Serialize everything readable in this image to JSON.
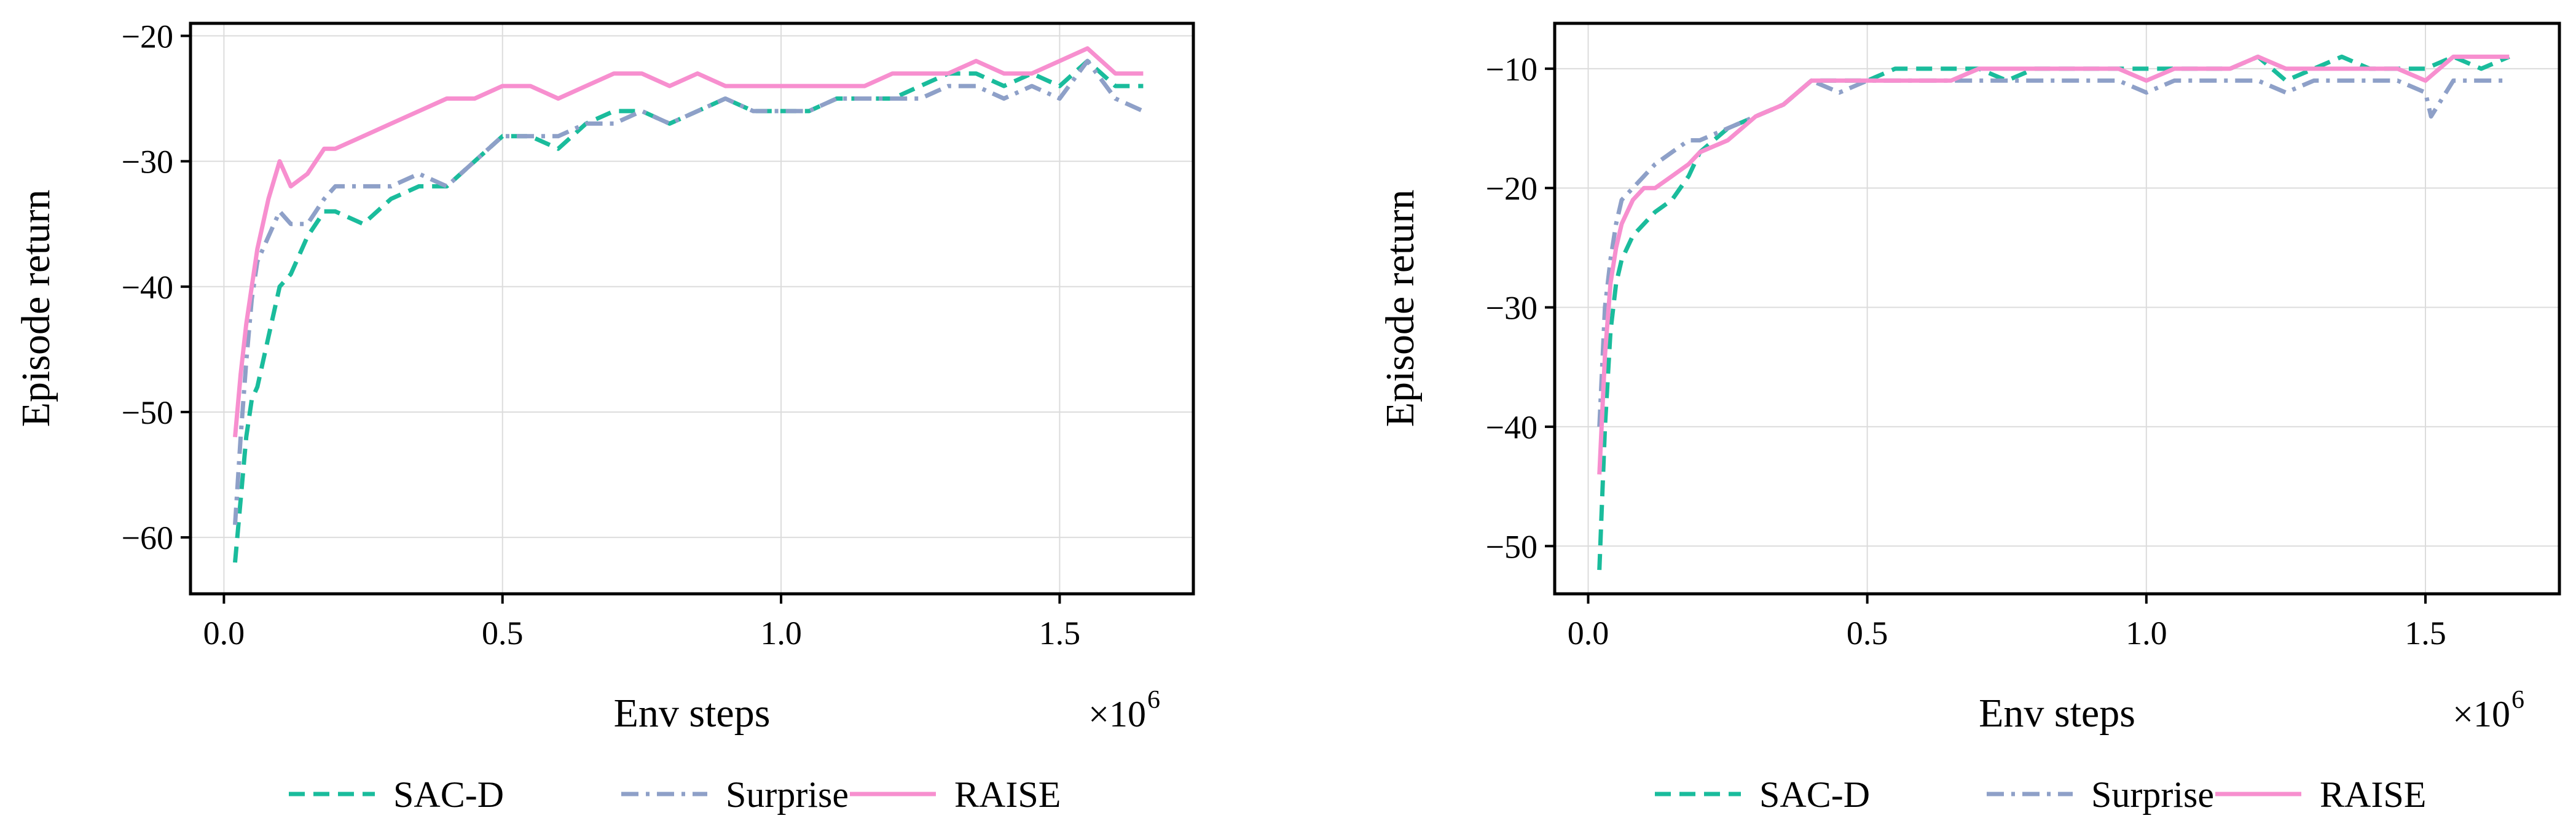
{
  "chart_data": [
    {
      "type": "line",
      "xlabel": "Env steps",
      "ylabel": "Episode return",
      "x_multiplier_label": "×10",
      "x_multiplier_exp": "6",
      "xlim": [
        -0.06,
        1.74
      ],
      "ylim": [
        -64.5,
        -19
      ],
      "xticks": [
        0.0,
        0.5,
        1.0,
        1.5
      ],
      "xtick_labels": [
        "0.0",
        "0.5",
        "1.0",
        "1.5"
      ],
      "yticks": [
        -60,
        -50,
        -40,
        -30,
        -20
      ],
      "ytick_labels": [
        "−60",
        "−50",
        "−40",
        "−30",
        "−20"
      ],
      "grid": true,
      "legend_position": "bottom",
      "series": [
        {
          "name": "SAC-D",
          "color": "#1abc9c",
          "dash": "dashed",
          "x": [
            0.02,
            0.03,
            0.04,
            0.05,
            0.06,
            0.08,
            0.1,
            0.12,
            0.15,
            0.18,
            0.2,
            0.25,
            0.3,
            0.35,
            0.4,
            0.45,
            0.5,
            0.55,
            0.6,
            0.65,
            0.7,
            0.75,
            0.8,
            0.85,
            0.9,
            0.95,
            1.0,
            1.05,
            1.1,
            1.15,
            1.2,
            1.25,
            1.3,
            1.35,
            1.4,
            1.45,
            1.5,
            1.55,
            1.6,
            1.65
          ],
          "y": [
            -62,
            -57,
            -52,
            -49,
            -48,
            -44,
            -40,
            -39,
            -36,
            -34,
            -34,
            -35,
            -33,
            -32,
            -32,
            -30,
            -28,
            -28,
            -29,
            -27,
            -26,
            -26,
            -27,
            -26,
            -25,
            -26,
            -26,
            -26,
            -25,
            -25,
            -25,
            -24,
            -23,
            -23,
            -24,
            -23,
            -24,
            -22,
            -24,
            -24
          ]
        },
        {
          "name": "Surprise",
          "color": "#8ea0c8",
          "dash": "dashdot",
          "x": [
            0.02,
            0.03,
            0.04,
            0.05,
            0.06,
            0.08,
            0.1,
            0.12,
            0.15,
            0.18,
            0.2,
            0.25,
            0.3,
            0.35,
            0.4,
            0.45,
            0.5,
            0.55,
            0.6,
            0.65,
            0.7,
            0.75,
            0.8,
            0.85,
            0.9,
            0.95,
            1.0,
            1.05,
            1.1,
            1.15,
            1.2,
            1.25,
            1.3,
            1.35,
            1.4,
            1.45,
            1.5,
            1.55,
            1.6,
            1.65
          ],
          "y": [
            -59,
            -52,
            -46,
            -41,
            -38,
            -36,
            -34,
            -35,
            -35,
            -33,
            -32,
            -32,
            -32,
            -31,
            -32,
            -30,
            -28,
            -28,
            -28,
            -27,
            -27,
            -26,
            -27,
            -26,
            -25,
            -26,
            -26,
            -26,
            -25,
            -25,
            -25,
            -25,
            -24,
            -24,
            -25,
            -24,
            -25,
            -22,
            -25,
            -26
          ]
        },
        {
          "name": "RAISE",
          "color": "#f78fcf",
          "dash": "solid",
          "x": [
            0.02,
            0.03,
            0.04,
            0.05,
            0.06,
            0.08,
            0.1,
            0.12,
            0.15,
            0.18,
            0.2,
            0.25,
            0.3,
            0.35,
            0.4,
            0.45,
            0.5,
            0.55,
            0.6,
            0.65,
            0.7,
            0.75,
            0.8,
            0.85,
            0.9,
            0.95,
            1.0,
            1.05,
            1.1,
            1.15,
            1.2,
            1.25,
            1.3,
            1.35,
            1.4,
            1.45,
            1.5,
            1.55,
            1.6,
            1.65
          ],
          "y": [
            -52,
            -47,
            -43,
            -40,
            -37,
            -33,
            -30,
            -32,
            -31,
            -29,
            -29,
            -28,
            -27,
            -26,
            -25,
            -25,
            -24,
            -24,
            -25,
            -24,
            -23,
            -23,
            -24,
            -23,
            -24,
            -24,
            -24,
            -24,
            -24,
            -24,
            -23,
            -23,
            -23,
            -22,
            -23,
            -23,
            -22,
            -21,
            -23,
            -23
          ]
        }
      ]
    },
    {
      "type": "line",
      "xlabel": "Env steps",
      "ylabel": "Episode return",
      "x_multiplier_label": "×10",
      "x_multiplier_exp": "6",
      "xlim": [
        -0.06,
        1.74
      ],
      "ylim": [
        -54,
        -6.2
      ],
      "xticks": [
        0.0,
        0.5,
        1.0,
        1.5
      ],
      "xtick_labels": [
        "0.0",
        "0.5",
        "1.0",
        "1.5"
      ],
      "yticks": [
        -50,
        -40,
        -30,
        -20,
        -10
      ],
      "ytick_labels": [
        "−50",
        "−40",
        "−30",
        "−20",
        "−10"
      ],
      "grid": true,
      "legend_position": "bottom",
      "series": [
        {
          "name": "SAC-D",
          "color": "#1abc9c",
          "dash": "dashed",
          "x": [
            0.02,
            0.03,
            0.04,
            0.05,
            0.06,
            0.08,
            0.1,
            0.12,
            0.15,
            0.18,
            0.2,
            0.25,
            0.3,
            0.35,
            0.4,
            0.45,
            0.5,
            0.55,
            0.6,
            0.65,
            0.7,
            0.75,
            0.8,
            0.85,
            0.9,
            0.95,
            1.0,
            1.05,
            1.1,
            1.15,
            1.2,
            1.25,
            1.3,
            1.35,
            1.4,
            1.45,
            1.5,
            1.55,
            1.6,
            1.65
          ],
          "y": [
            -52,
            -40,
            -32,
            -28,
            -26,
            -24,
            -23,
            -22,
            -21,
            -19,
            -17,
            -15,
            -14,
            -13,
            -11,
            -11,
            -11,
            -10,
            -10,
            -10,
            -10,
            -11,
            -10,
            -10,
            -10,
            -10,
            -10,
            -10,
            -10,
            -10,
            -9,
            -11,
            -10,
            -9,
            -10,
            -10,
            -10,
            -9,
            -10,
            -9
          ]
        },
        {
          "name": "Surprise",
          "color": "#8ea0c8",
          "dash": "dashdot",
          "x": [
            0.02,
            0.03,
            0.04,
            0.05,
            0.06,
            0.08,
            0.1,
            0.12,
            0.15,
            0.18,
            0.2,
            0.25,
            0.3,
            0.35,
            0.4,
            0.45,
            0.5,
            0.55,
            0.6,
            0.65,
            0.7,
            0.75,
            0.8,
            0.85,
            0.9,
            0.95,
            1.0,
            1.05,
            1.1,
            1.15,
            1.2,
            1.25,
            1.3,
            1.35,
            1.4,
            1.45,
            1.5,
            1.51,
            1.55,
            1.6,
            1.65
          ],
          "y": [
            -40,
            -30,
            -26,
            -23,
            -21,
            -20,
            -19,
            -18,
            -17,
            -16,
            -16,
            -15,
            -14,
            -13,
            -11,
            -12,
            -11,
            -11,
            -11,
            -11,
            -11,
            -11,
            -11,
            -11,
            -11,
            -11,
            -12,
            -11,
            -11,
            -11,
            -11,
            -12,
            -11,
            -11,
            -11,
            -11,
            -12,
            -14,
            -11,
            -11,
            -11
          ]
        },
        {
          "name": "RAISE",
          "color": "#f78fcf",
          "dash": "solid",
          "x": [
            0.02,
            0.03,
            0.04,
            0.05,
            0.06,
            0.08,
            0.1,
            0.12,
            0.15,
            0.18,
            0.2,
            0.25,
            0.3,
            0.35,
            0.4,
            0.45,
            0.5,
            0.55,
            0.6,
            0.65,
            0.7,
            0.75,
            0.8,
            0.85,
            0.9,
            0.95,
            1.0,
            1.05,
            1.1,
            1.15,
            1.2,
            1.25,
            1.3,
            1.35,
            1.4,
            1.45,
            1.5,
            1.55,
            1.6,
            1.65
          ],
          "y": [
            -44,
            -34,
            -28,
            -25,
            -23,
            -21,
            -20,
            -20,
            -19,
            -18,
            -17,
            -16,
            -14,
            -13,
            -11,
            -11,
            -11,
            -11,
            -11,
            -11,
            -10,
            -10,
            -10,
            -10,
            -10,
            -10,
            -11,
            -10,
            -10,
            -10,
            -9,
            -10,
            -10,
            -10,
            -10,
            -10,
            -11,
            -9,
            -9,
            -9
          ]
        }
      ]
    }
  ]
}
